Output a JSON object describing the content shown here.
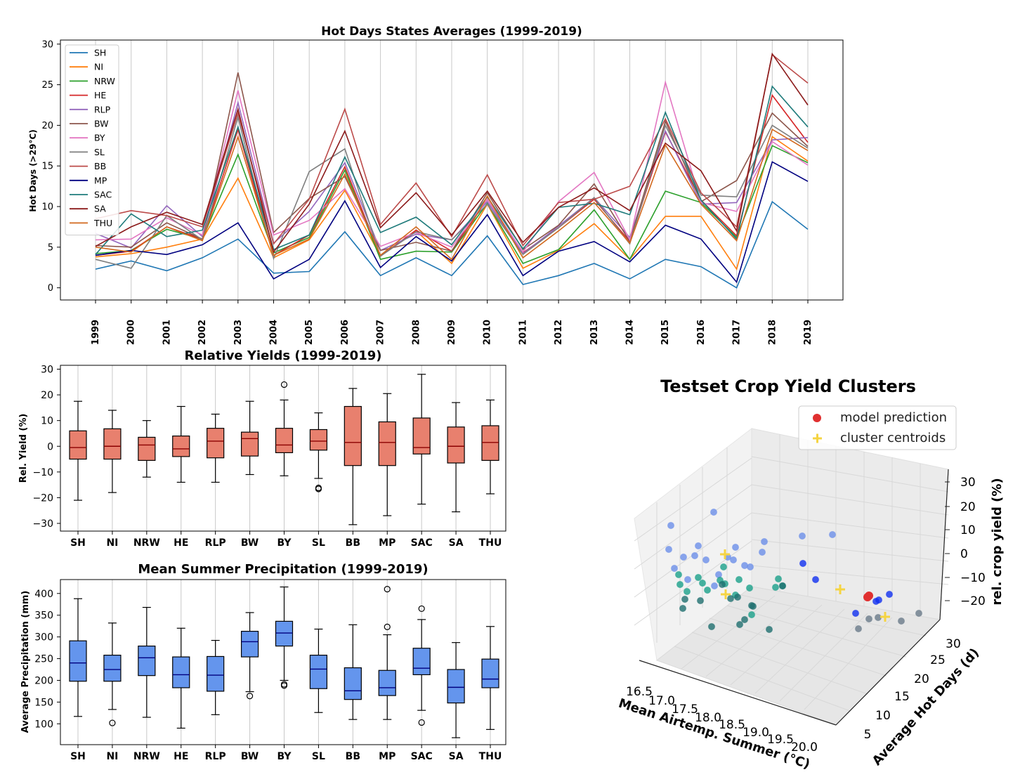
{
  "chart_data": [
    {
      "type": "line",
      "title": "Hot Days States Averages (1999-2019)",
      "xlabel": "",
      "ylabel": "Hot Days (>29°C)",
      "ylim": [
        -1.5,
        30.5
      ],
      "yticks": [
        0,
        5,
        10,
        15,
        20,
        25,
        30
      ],
      "grid": "vertical",
      "legend_position": "top-left",
      "x": [
        "1999",
        "2000",
        "2001",
        "2002",
        "2003",
        "2004",
        "2005",
        "2006",
        "2007",
        "2008",
        "2009",
        "2010",
        "2011",
        "2012",
        "2013",
        "2014",
        "2015",
        "2016",
        "2017",
        "2018",
        "2019"
      ],
      "series": [
        {
          "name": "SH",
          "color": "#1f77b4",
          "values": [
            2.3,
            3.3,
            2.1,
            3.7,
            6.0,
            1.8,
            2.0,
            6.9,
            1.5,
            3.7,
            1.5,
            6.4,
            0.4,
            1.5,
            3.0,
            1.1,
            3.5,
            2.6,
            0.0,
            10.6,
            7.2
          ]
        },
        {
          "name": "NI",
          "color": "#ff7f0e",
          "values": [
            3.8,
            4.2,
            5.0,
            6.0,
            13.5,
            3.7,
            5.9,
            12.0,
            3.9,
            7.0,
            3.0,
            10.3,
            2.4,
            4.6,
            7.9,
            3.5,
            8.8,
            8.8,
            2.3,
            18.6,
            15.6
          ]
        },
        {
          "name": "NRW",
          "color": "#2ca02c",
          "values": [
            4.2,
            4.6,
            7.2,
            6.0,
            16.4,
            4.3,
            6.2,
            14.5,
            3.5,
            4.5,
            4.4,
            10.4,
            3.0,
            4.7,
            9.6,
            3.5,
            11.9,
            10.5,
            6.2,
            17.5,
            15.4
          ]
        },
        {
          "name": "HE",
          "color": "#d62728",
          "values": [
            4.0,
            4.5,
            7.5,
            6.0,
            19.5,
            4.0,
            6.5,
            14.9,
            3.9,
            7.1,
            4.5,
            10.9,
            4.3,
            7.4,
            10.9,
            5.7,
            19.2,
            10.8,
            6.4,
            23.7,
            17.9
          ]
        },
        {
          "name": "RLP",
          "color": "#9467bd",
          "values": [
            6.7,
            4.9,
            10.1,
            6.3,
            22.8,
            5.5,
            9.4,
            15.4,
            4.6,
            6.6,
            5.9,
            10.6,
            4.2,
            7.6,
            11.1,
            6.2,
            19.3,
            10.3,
            10.5,
            18.2,
            18.5
          ]
        },
        {
          "name": "BW",
          "color": "#8c564b",
          "values": [
            5.2,
            5.0,
            8.0,
            6.0,
            26.5,
            6.8,
            11.0,
            13.7,
            4.6,
            5.6,
            4.5,
            11.7,
            4.7,
            7.7,
            12.8,
            5.7,
            20.5,
            10.6,
            13.2,
            21.5,
            17.4
          ]
        },
        {
          "name": "BY",
          "color": "#e377c2",
          "values": [
            5.9,
            6.0,
            8.6,
            6.5,
            24.3,
            6.5,
            8.3,
            12.2,
            5.1,
            6.8,
            5.0,
            10.9,
            4.4,
            10.6,
            14.2,
            5.9,
            25.3,
            10.5,
            9.4,
            18.0,
            15.1
          ]
        },
        {
          "name": "SL",
          "color": "#7f7f7f",
          "values": [
            3.5,
            2.4,
            8.9,
            5.9,
            21.0,
            3.6,
            14.3,
            17.1,
            3.9,
            6.9,
            5.9,
            10.3,
            4.1,
            7.4,
            11.1,
            5.4,
            20.0,
            11.4,
            11.2,
            20.0,
            17.2
          ]
        },
        {
          "name": "BB",
          "color": "#bc4b4a",
          "values": [
            8.5,
            9.5,
            8.9,
            7.5,
            21.5,
            5.4,
            10.9,
            22.0,
            7.8,
            12.9,
            6.3,
            13.9,
            5.2,
            10.5,
            10.9,
            12.5,
            20.8,
            11.7,
            7.5,
            28.7,
            25.2
          ]
        },
        {
          "name": "MP",
          "color": "#000080",
          "values": [
            4.0,
            4.6,
            4.1,
            5.3,
            8.0,
            1.1,
            3.5,
            10.7,
            2.5,
            6.3,
            3.3,
            9.0,
            1.5,
            4.5,
            5.7,
            3.2,
            7.7,
            6.0,
            0.7,
            15.5,
            13.1
          ]
        },
        {
          "name": "SAC",
          "color": "#1f7b7b",
          "values": [
            4.1,
            9.1,
            6.3,
            7.1,
            19.8,
            4.7,
            6.5,
            16.1,
            6.8,
            8.7,
            5.3,
            11.2,
            4.8,
            9.9,
            10.4,
            9.0,
            21.6,
            10.8,
            6.0,
            24.8,
            19.8
          ]
        },
        {
          "name": "SA",
          "color": "#8b1a1a",
          "values": [
            5.1,
            7.5,
            9.3,
            7.8,
            22.0,
            4.4,
            10.3,
            19.3,
            7.4,
            11.7,
            6.5,
            11.9,
            5.6,
            9.9,
            12.3,
            9.5,
            17.8,
            14.4,
            7.0,
            28.8,
            22.5
          ]
        },
        {
          "name": "THU",
          "color": "#d2691e",
          "values": [
            5.0,
            4.4,
            7.5,
            5.8,
            18.6,
            4.0,
            6.0,
            14.0,
            4.0,
            7.5,
            3.5,
            11.3,
            3.7,
            7.0,
            10.5,
            5.5,
            17.6,
            10.3,
            5.8,
            19.5,
            16.9
          ]
        }
      ]
    },
    {
      "type": "box",
      "title": "Relative Yields (1999-2019)",
      "xlabel": "",
      "ylabel": "Rel. Yield (%)",
      "ylim": [
        -33,
        31.5
      ],
      "yticks": [
        -30,
        -20,
        -10,
        0,
        10,
        20,
        30
      ],
      "box_color": "#e8806e",
      "median_color": "#8b0000",
      "grid": "vertical",
      "categories": [
        "SH",
        "NI",
        "NRW",
        "HE",
        "RLP",
        "BW",
        "BY",
        "SL",
        "BB",
        "MP",
        "SAC",
        "SA",
        "THU"
      ],
      "boxes": [
        {
          "whislo": -21.0,
          "q1": -5.0,
          "med": -0.5,
          "q3": 6.0,
          "whishi": 17.5,
          "fliers": []
        },
        {
          "whislo": -18.0,
          "q1": -5.0,
          "med": 0.0,
          "q3": 6.8,
          "whishi": 14.0,
          "fliers": []
        },
        {
          "whislo": -12.0,
          "q1": -5.5,
          "med": 0.5,
          "q3": 3.5,
          "whishi": 10.0,
          "fliers": []
        },
        {
          "whislo": -14.0,
          "q1": -4.0,
          "med": -1.0,
          "q3": 4.0,
          "whishi": 15.5,
          "fliers": []
        },
        {
          "whislo": -14.0,
          "q1": -4.5,
          "med": 2.0,
          "q3": 7.0,
          "whishi": 12.5,
          "fliers": []
        },
        {
          "whislo": -11.0,
          "q1": -3.8,
          "med": 3.0,
          "q3": 5.5,
          "whishi": 17.5,
          "fliers": []
        },
        {
          "whislo": -11.5,
          "q1": -2.5,
          "med": 0.5,
          "q3": 7.0,
          "whishi": 18.0,
          "fliers": [
            24.0
          ]
        },
        {
          "whislo": -12.5,
          "q1": -1.5,
          "med": 2.0,
          "q3": 6.5,
          "whishi": 13.0,
          "fliers": [
            -16.2,
            -16.6
          ]
        },
        {
          "whislo": -30.5,
          "q1": -7.5,
          "med": 1.5,
          "q3": 15.5,
          "whishi": 22.5,
          "fliers": []
        },
        {
          "whislo": -27.0,
          "q1": -7.5,
          "med": 1.5,
          "q3": 9.5,
          "whishi": 20.5,
          "fliers": []
        },
        {
          "whislo": -22.5,
          "q1": -3.0,
          "med": -0.5,
          "q3": 11.0,
          "whishi": 28.0,
          "fliers": []
        },
        {
          "whislo": -25.5,
          "q1": -6.5,
          "med": 0.0,
          "q3": 7.5,
          "whishi": 17.0,
          "fliers": []
        },
        {
          "whislo": -18.5,
          "q1": -5.5,
          "med": 1.5,
          "q3": 8.0,
          "whishi": 18.0,
          "fliers": []
        }
      ]
    },
    {
      "type": "box",
      "title": "Mean Summer Precipitation (1999-2019)",
      "xlabel": "",
      "ylabel": "Average Precipitation (mm)",
      "ylim": [
        52,
        432
      ],
      "yticks": [
        100,
        150,
        200,
        250,
        300,
        350,
        400
      ],
      "box_color": "#6495ed",
      "median_color": "#000080",
      "grid": "vertical",
      "categories": [
        "SH",
        "NI",
        "NRW",
        "HE",
        "RLP",
        "BW",
        "BY",
        "SL",
        "BB",
        "MP",
        "SAC",
        "SA",
        "THU"
      ],
      "boxes": [
        {
          "whislo": 117,
          "q1": 198,
          "med": 240,
          "q3": 291,
          "whishi": 388,
          "fliers": []
        },
        {
          "whislo": 133,
          "q1": 198,
          "med": 225,
          "q3": 258,
          "whishi": 332,
          "fliers": [
            102
          ]
        },
        {
          "whislo": 115,
          "q1": 211,
          "med": 252,
          "q3": 279,
          "whishi": 368,
          "fliers": []
        },
        {
          "whislo": 90,
          "q1": 183,
          "med": 213,
          "q3": 254,
          "whishi": 320,
          "fliers": []
        },
        {
          "whislo": 121,
          "q1": 175,
          "med": 212,
          "q3": 255,
          "whishi": 292,
          "fliers": []
        },
        {
          "whislo": 174,
          "q1": 254,
          "med": 289,
          "q3": 313,
          "whishi": 356,
          "fliers": [
            164
          ]
        },
        {
          "whislo": 200,
          "q1": 279,
          "med": 309,
          "q3": 336,
          "whishi": 415,
          "fliers": [
            188,
            191
          ]
        },
        {
          "whislo": 126,
          "q1": 181,
          "med": 226,
          "q3": 258,
          "whishi": 318,
          "fliers": []
        },
        {
          "whislo": 110,
          "q1": 156,
          "med": 176,
          "q3": 229,
          "whishi": 328,
          "fliers": []
        },
        {
          "whislo": 110,
          "q1": 165,
          "med": 183,
          "q3": 223,
          "whishi": 305,
          "fliers": [
            323,
            410
          ]
        },
        {
          "whislo": 131,
          "q1": 213,
          "med": 228,
          "q3": 274,
          "whishi": 340,
          "fliers": [
            103,
            365
          ]
        },
        {
          "whislo": 68,
          "q1": 148,
          "med": 184,
          "q3": 225,
          "whishi": 287,
          "fliers": []
        },
        {
          "whislo": 87,
          "q1": 183,
          "med": 203,
          "q3": 249,
          "whishi": 324,
          "fliers": []
        }
      ]
    },
    {
      "type": "scatter3d",
      "title": "Testset Crop Yield Clusters",
      "xlabel": "Mean Airtemp. Summer (°C)",
      "ylabel": "Average Hot Days (d)",
      "zlabel": "rel. crop yield (%)",
      "xticks": [
        "16.5",
        "17.0",
        "17.5",
        "18.0",
        "18.5",
        "19.0",
        "19.5",
        "20.0"
      ],
      "yticks": [
        "5",
        "10",
        "15",
        "20",
        "25",
        "30"
      ],
      "zticks": [
        "30",
        "20",
        "10",
        "0",
        "−10",
        "−20"
      ],
      "legend_position": "top-right",
      "legend": [
        {
          "label": "model prediction",
          "color": "#e03030",
          "marker": "circle"
        },
        {
          "label": "cluster centroids",
          "color": "#f5d442",
          "marker": "plus"
        }
      ],
      "clusters": [
        {
          "color": "#6b8ee8",
          "points": [
            [
              955,
              748
            ],
            [
              1016,
              729
            ],
            [
              952,
              782
            ],
            [
              994,
              777
            ],
            [
              973,
              793
            ],
            [
              1047,
              779
            ],
            [
              1036,
              793
            ],
            [
              1088,
              771
            ],
            [
              1142,
              763
            ],
            [
              1185,
              761
            ],
            [
              960,
              809
            ],
            [
              989,
              791
            ],
            [
              1005,
              797
            ],
            [
              1044,
              797
            ],
            [
              1060,
              805
            ],
            [
              1068,
              807
            ],
            [
              1085,
              786
            ],
            [
              979,
              825
            ],
            [
              1023,
              818
            ],
            [
              1017,
              834
            ]
          ]
        },
        {
          "color": "#1aa08a",
          "points": [
            [
              966,
              818
            ],
            [
              968,
              832
            ],
            [
              978,
              842
            ],
            [
              994,
              822
            ],
            [
              1000,
              830
            ],
            [
              1007,
              840
            ],
            [
              1030,
              807
            ],
            [
              1052,
              825
            ],
            [
              1067,
              837
            ],
            [
              1047,
              847
            ],
            [
              1025,
              826
            ],
            [
              1108,
              824
            ],
            [
              1104,
              836
            ],
            [
              1114,
              834
            ],
            [
              1032,
              831
            ],
            [
              1070,
              875
            ]
          ]
        },
        {
          "color": "#1f6f6f",
          "points": [
            [
              975,
              853
            ],
            [
              997,
              855
            ],
            [
              972,
              866
            ],
            [
              1040,
              852
            ],
            [
              1050,
              850
            ],
            [
              1070,
              862
            ],
            [
              1072,
              863
            ],
            [
              1060,
              882
            ],
            [
              1053,
              889
            ],
            [
              1013,
              892
            ],
            [
              1095,
              896
            ],
            [
              1114,
              834
            ],
            [
              1028,
              832
            ]
          ]
        },
        {
          "color": "#1030f0",
          "points": [
            [
              1143,
              802
            ],
            [
              1161,
              825
            ],
            [
              1247,
              856
            ],
            [
              1218,
              873
            ],
            [
              1266,
              846
            ],
            [
              1251,
              854
            ]
          ]
        },
        {
          "color": "#6a7a8a",
          "points": [
            [
              1237,
              881
            ],
            [
              1250,
              879
            ],
            [
              1283,
              884
            ],
            [
              1308,
              873
            ],
            [
              1222,
              895
            ]
          ]
        }
      ],
      "predictions": [
        [
          1235,
          850
        ],
        [
          1237,
          848
        ]
      ],
      "centroids": [
        [
          1032,
          789
        ],
        [
          1033,
          846
        ],
        [
          1196,
          839
        ],
        [
          1260,
          878
        ]
      ]
    }
  ]
}
